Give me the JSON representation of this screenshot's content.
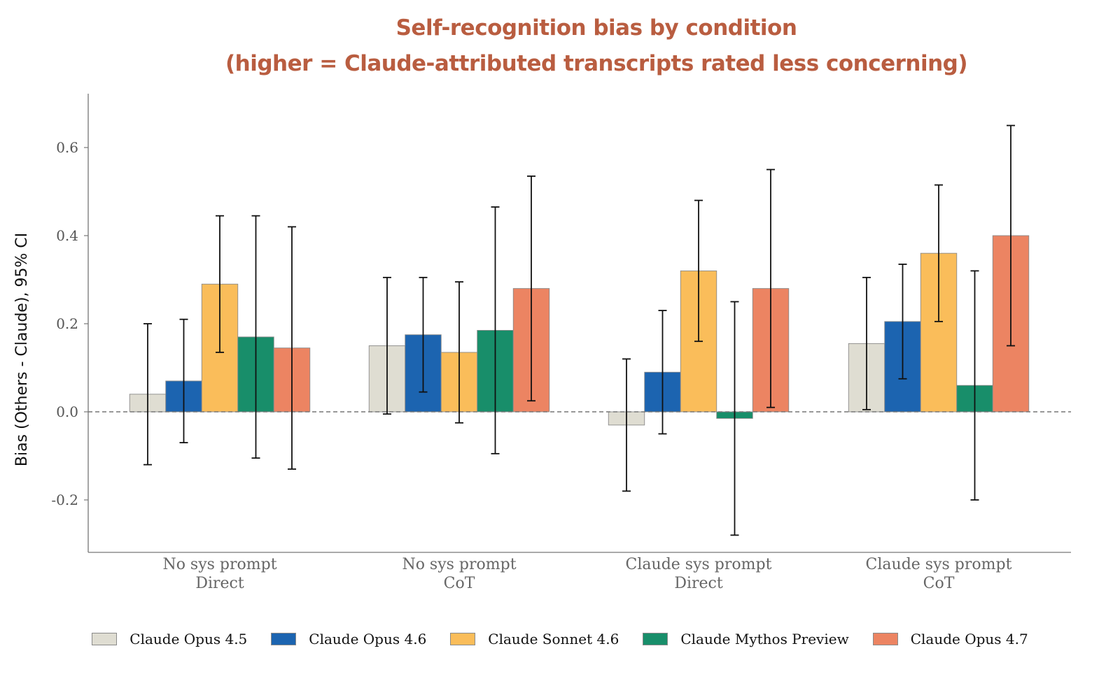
{
  "chart_data": {
    "type": "bar",
    "title": "Self-recognition bias by condition",
    "subtitle": "(higher = Claude-attributed transcripts rated less concerning)",
    "xlabel": "",
    "ylabel": "Bias (Others - Claude), 95% CI",
    "ylim": [
      -0.32,
      0.72
    ],
    "yticks": [
      -0.2,
      0.0,
      0.2,
      0.4,
      0.6
    ],
    "ytick_labels": [
      "-0.2",
      "0.0",
      "0.2",
      "0.4",
      "0.6"
    ],
    "reference_line": {
      "y": 0.0,
      "style": "dashed"
    },
    "grid": false,
    "legend_position": "bottom",
    "categories": [
      [
        "No sys prompt",
        "Direct"
      ],
      [
        "No sys prompt",
        "CoT"
      ],
      [
        "Claude sys prompt",
        "Direct"
      ],
      [
        "Claude sys prompt",
        "CoT"
      ]
    ],
    "series": [
      {
        "name": "Claude Opus 4.5",
        "color": "#dfddd2",
        "values": [
          0.04,
          0.15,
          -0.03,
          0.155
        ],
        "ci_low": [
          -0.12,
          -0.005,
          -0.18,
          0.005
        ],
        "ci_high": [
          0.2,
          0.305,
          0.12,
          0.305
        ]
      },
      {
        "name": "Claude Opus 4.6",
        "color": "#1c64b0",
        "values": [
          0.07,
          0.175,
          0.09,
          0.205
        ],
        "ci_low": [
          -0.07,
          0.045,
          -0.05,
          0.075
        ],
        "ci_high": [
          0.21,
          0.305,
          0.23,
          0.335
        ]
      },
      {
        "name": "Claude Sonnet 4.6",
        "color": "#fabd5a",
        "values": [
          0.29,
          0.135,
          0.32,
          0.36
        ],
        "ci_low": [
          0.135,
          -0.025,
          0.16,
          0.205
        ],
        "ci_high": [
          0.445,
          0.295,
          0.48,
          0.515
        ]
      },
      {
        "name": "Claude Mythos Preview",
        "color": "#188e6a",
        "values": [
          0.17,
          0.185,
          -0.015,
          0.06
        ],
        "ci_low": [
          -0.105,
          -0.095,
          -0.28,
          -0.2
        ],
        "ci_high": [
          0.445,
          0.465,
          0.25,
          0.32
        ]
      },
      {
        "name": "Claude Opus 4.7",
        "color": "#ec8462",
        "values": [
          0.145,
          0.28,
          0.28,
          0.4
        ],
        "ci_low": [
          -0.13,
          0.025,
          0.01,
          0.15
        ],
        "ci_high": [
          0.42,
          0.535,
          0.55,
          0.65
        ]
      }
    ]
  }
}
